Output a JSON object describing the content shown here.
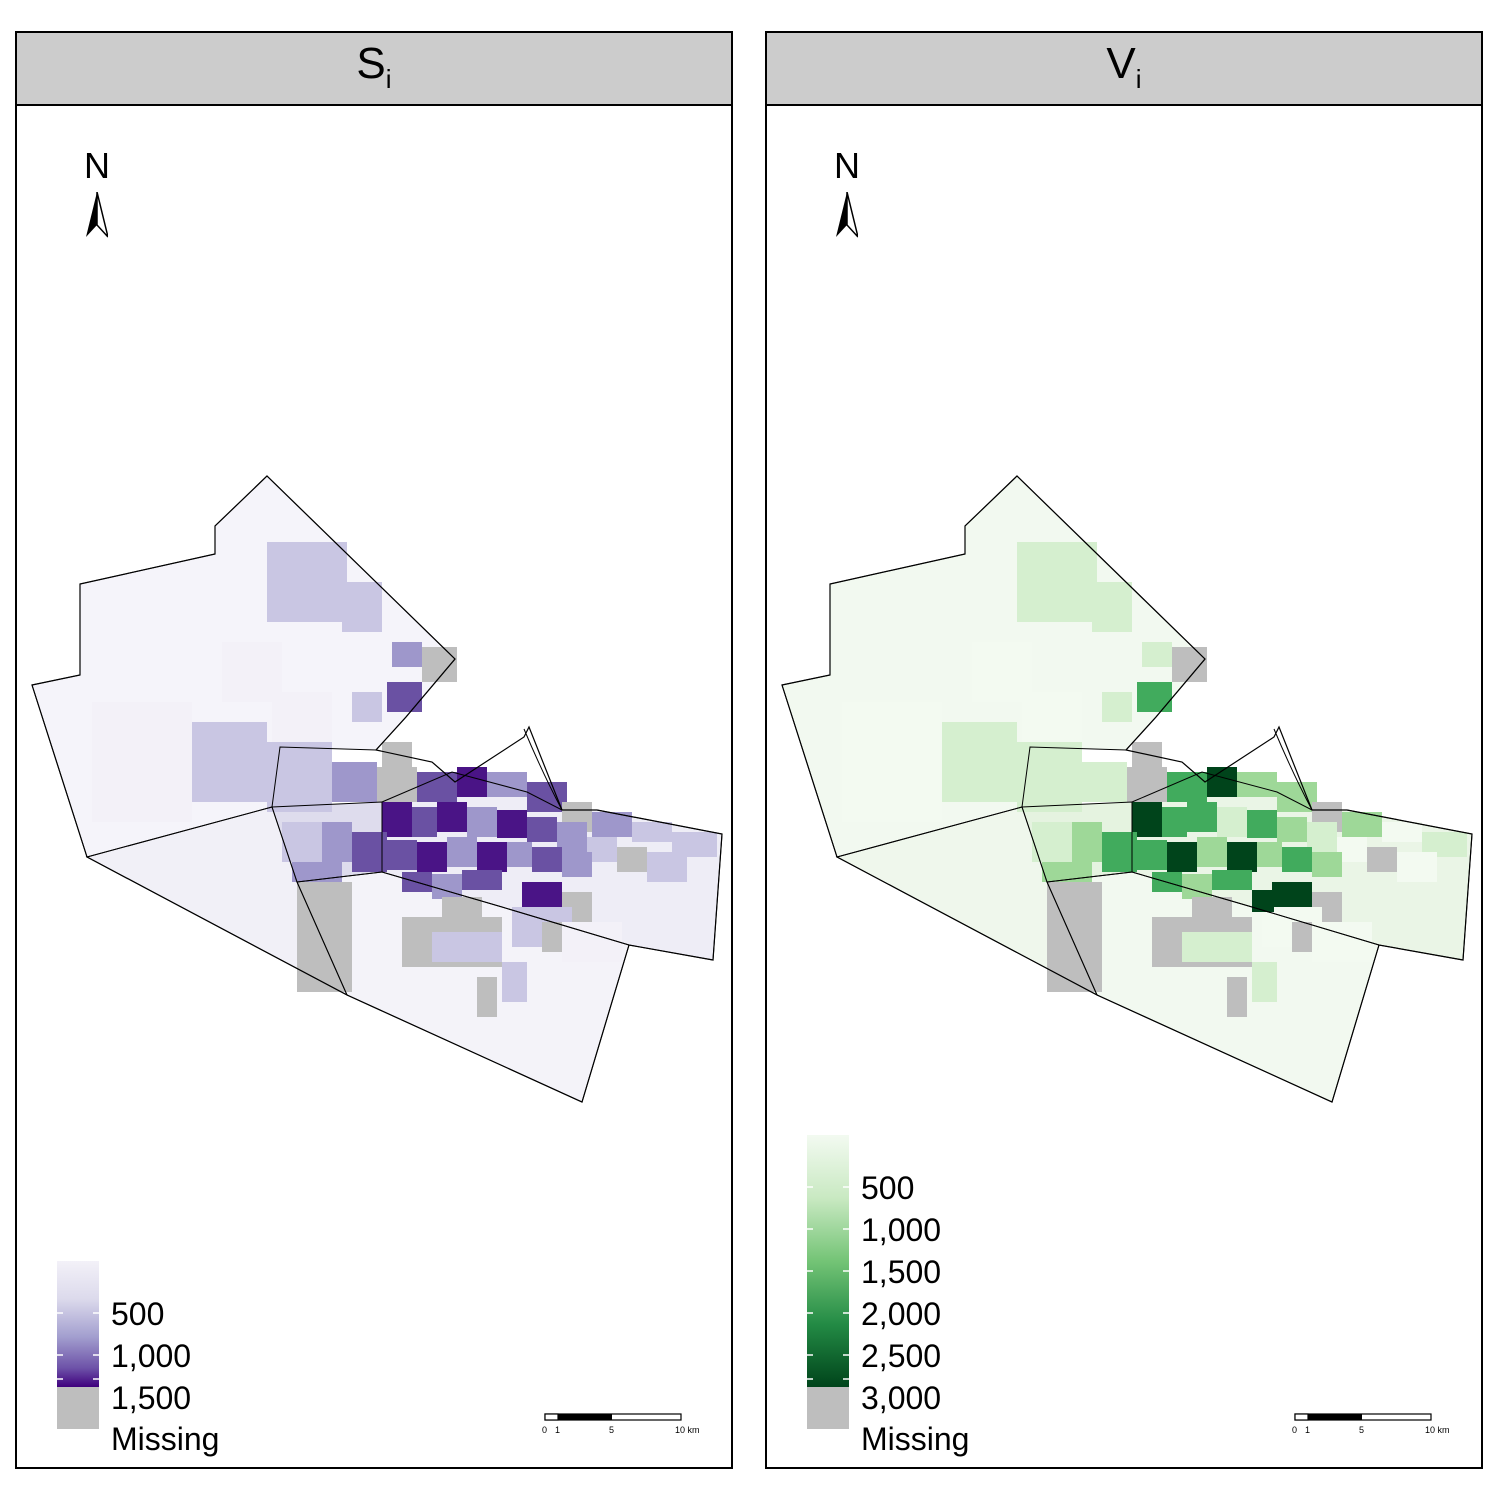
{
  "panels": [
    {
      "id": "S",
      "title_main": "S",
      "title_sub": "i",
      "north_label": "N",
      "legend": {
        "labels": [
          "500",
          "1,000",
          "1,500"
        ],
        "missing_label": "Missing",
        "colors": [
          "#f3f1f8",
          "#d8d6ea",
          "#a39fcf",
          "#6d52a8",
          "#3f007d"
        ]
      },
      "scale": {
        "ticks": [
          "0",
          "1",
          "5",
          "10 km"
        ]
      }
    },
    {
      "id": "V",
      "title_main": "V",
      "title_sub": "i",
      "north_label": "N",
      "legend": {
        "labels": [
          "500",
          "1,000",
          "1,500",
          "2,000",
          "2,500",
          "3,000"
        ],
        "missing_label": "Missing",
        "colors": [
          "#f3faf1",
          "#c9e9c2",
          "#74c476",
          "#238b45",
          "#00441b"
        ]
      },
      "scale": {
        "ticks": [
          "0",
          "1",
          "5",
          "10 km"
        ]
      }
    }
  ],
  "missing_color": "#bebebe"
}
